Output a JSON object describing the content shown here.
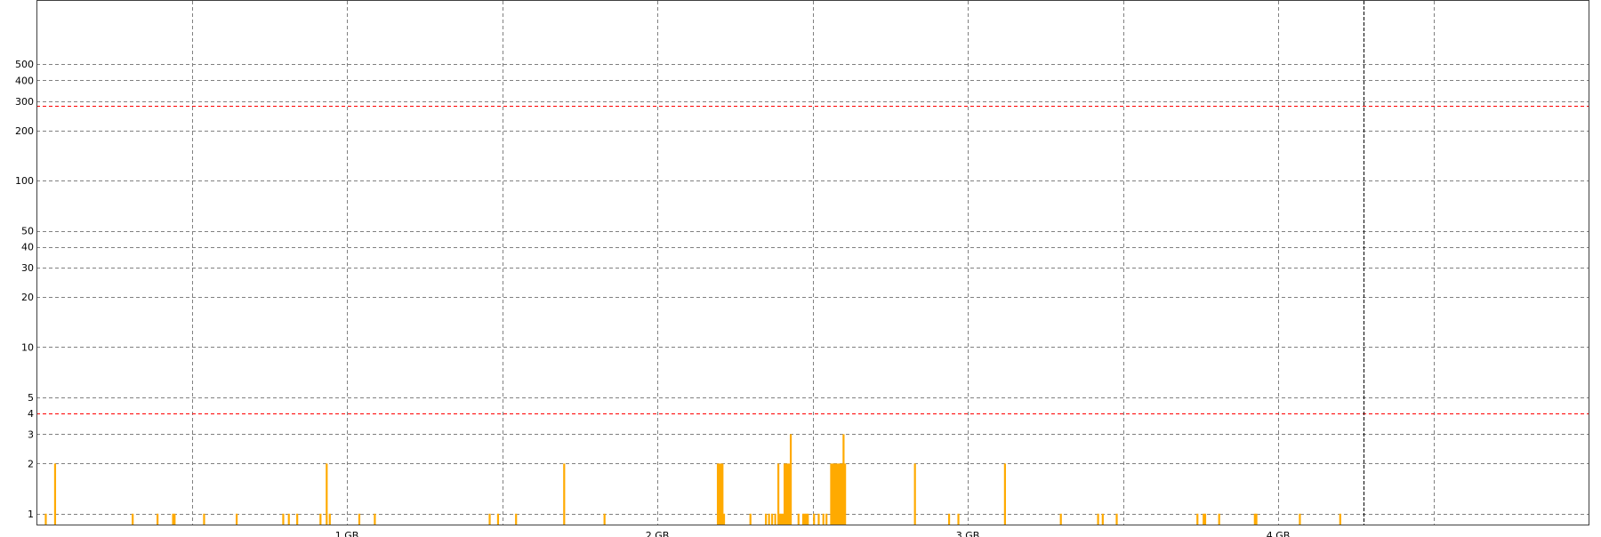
{
  "chart_data": {
    "type": "bar",
    "title": "",
    "xlabel": "",
    "ylabel": "",
    "x_unit": "GB",
    "xlim": [
      -1.0,
      4.0
    ],
    "ylim": [
      0.85,
      1200
    ],
    "y_scale": "log",
    "grid": true,
    "x_gridlines": [
      -0.5,
      0,
      0.5,
      1,
      1.5,
      2,
      2.5,
      3,
      3.5
    ],
    "x_ticks": [
      {
        "value": 0,
        "label": "1 GB"
      },
      {
        "value": 1,
        "label": "2 GB"
      },
      {
        "value": 2,
        "label": "3 GB"
      },
      {
        "value": 3,
        "label": "4 GB"
      }
    ],
    "y_ticks": [
      {
        "value": 1,
        "label": "1"
      },
      {
        "value": 2,
        "label": "2"
      },
      {
        "value": 3,
        "label": "3"
      },
      {
        "value": 4,
        "label": "4"
      },
      {
        "value": 5,
        "label": "5"
      },
      {
        "value": 10,
        "label": "10"
      },
      {
        "value": 20,
        "label": "20"
      },
      {
        "value": 30,
        "label": "30"
      },
      {
        "value": 40,
        "label": "40"
      },
      {
        "value": 50,
        "label": "50"
      },
      {
        "value": 100,
        "label": "100"
      },
      {
        "value": 200,
        "label": "200"
      },
      {
        "value": 300,
        "label": "300"
      },
      {
        "value": 400,
        "label": "400"
      },
      {
        "value": 500,
        "label": "500"
      }
    ],
    "threshold_lines": [
      280,
      4
    ],
    "marker_x": 3.275,
    "colors": {
      "bars": "#ffaa00",
      "threshold": "#ff0000",
      "grid": "#808080",
      "axis": "#000000"
    },
    "series": [
      {
        "values": [
          [
            -0.97,
            1
          ],
          [
            -0.94,
            2
          ],
          [
            -0.69,
            1
          ],
          [
            -0.61,
            1
          ],
          [
            -0.56,
            1
          ],
          [
            -0.555,
            1
          ],
          [
            -0.46,
            1
          ],
          [
            -0.355,
            1
          ],
          [
            -0.205,
            1
          ],
          [
            -0.187,
            1
          ],
          [
            -0.16,
            1
          ],
          [
            -0.085,
            1
          ],
          [
            -0.065,
            2
          ],
          [
            -0.055,
            1
          ],
          [
            0.04,
            1
          ],
          [
            0.09,
            1
          ],
          [
            0.46,
            1
          ],
          [
            0.487,
            1
          ],
          [
            0.545,
            1
          ],
          [
            0.7,
            2
          ],
          [
            0.83,
            1
          ],
          [
            1.195,
            2
          ],
          [
            1.2,
            2
          ],
          [
            1.205,
            2
          ],
          [
            1.21,
            2
          ],
          [
            1.215,
            1
          ],
          [
            1.3,
            1
          ],
          [
            1.35,
            1
          ],
          [
            1.36,
            1
          ],
          [
            1.37,
            1
          ],
          [
            1.38,
            1
          ],
          [
            1.39,
            2
          ],
          [
            1.395,
            1
          ],
          [
            1.4,
            1
          ],
          [
            1.405,
            1
          ],
          [
            1.41,
            2
          ],
          [
            1.415,
            2
          ],
          [
            1.42,
            2
          ],
          [
            1.425,
            2
          ],
          [
            1.43,
            3
          ],
          [
            1.455,
            1
          ],
          [
            1.47,
            1
          ],
          [
            1.475,
            1
          ],
          [
            1.48,
            1
          ],
          [
            1.485,
            1
          ],
          [
            1.505,
            1
          ],
          [
            1.52,
            1
          ],
          [
            1.535,
            1
          ],
          [
            1.545,
            1
          ],
          [
            1.56,
            2
          ],
          [
            1.565,
            2
          ],
          [
            1.57,
            2
          ],
          [
            1.575,
            2
          ],
          [
            1.58,
            2
          ],
          [
            1.585,
            2
          ],
          [
            1.59,
            2
          ],
          [
            1.595,
            2
          ],
          [
            1.6,
            3
          ],
          [
            1.605,
            2
          ],
          [
            1.83,
            2
          ],
          [
            1.94,
            1
          ],
          [
            1.97,
            1
          ],
          [
            2.12,
            2
          ],
          [
            2.3,
            1
          ],
          [
            2.42,
            1
          ],
          [
            2.435,
            1
          ],
          [
            2.48,
            1
          ],
          [
            2.74,
            1
          ],
          [
            2.76,
            1
          ],
          [
            2.765,
            1
          ],
          [
            2.81,
            1
          ],
          [
            2.925,
            1
          ],
          [
            2.93,
            1
          ],
          [
            3.07,
            1
          ],
          [
            3.2,
            1
          ]
        ]
      }
    ]
  }
}
